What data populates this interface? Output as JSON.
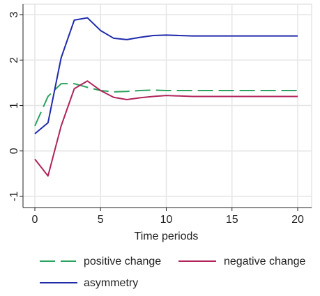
{
  "chart_data": {
    "type": "line",
    "title": "",
    "xlabel": "Time periods",
    "ylabel": "",
    "xlim": [
      0,
      20
    ],
    "ylim": [
      -1,
      3
    ],
    "xticks": [
      "0",
      "5",
      "10",
      "15",
      "20"
    ],
    "yticks": [
      "-1",
      "0",
      "1",
      "2",
      "3"
    ],
    "grid": true,
    "legend_position": "bottom",
    "series": [
      {
        "name": "positive change",
        "color": "#2ca25f",
        "dash": "dashed",
        "x": [
          0,
          1,
          2,
          3,
          4,
          5,
          6,
          7,
          8,
          9,
          10,
          11,
          12,
          13,
          14,
          15,
          16,
          17,
          18,
          19,
          20
        ],
        "values": [
          0.55,
          1.2,
          1.48,
          1.48,
          1.4,
          1.33,
          1.3,
          1.31,
          1.33,
          1.34,
          1.33,
          1.33,
          1.33,
          1.33,
          1.33,
          1.33,
          1.33,
          1.33,
          1.33,
          1.33,
          1.33
        ]
      },
      {
        "name": "negative change",
        "color": "#b0245a",
        "dash": "solid",
        "x": [
          0,
          1,
          2,
          3,
          4,
          5,
          6,
          7,
          8,
          9,
          10,
          11,
          12,
          13,
          14,
          15,
          16,
          17,
          18,
          19,
          20
        ],
        "values": [
          -0.18,
          -0.55,
          0.55,
          1.37,
          1.54,
          1.33,
          1.18,
          1.13,
          1.17,
          1.2,
          1.22,
          1.21,
          1.2,
          1.2,
          1.2,
          1.2,
          1.2,
          1.2,
          1.2,
          1.2,
          1.2
        ]
      },
      {
        "name": "asymmetry",
        "color": "#1f2bab",
        "dash": "solid",
        "x": [
          0,
          1,
          2,
          3,
          4,
          5,
          6,
          7,
          8,
          9,
          10,
          11,
          12,
          13,
          14,
          15,
          16,
          17,
          18,
          19,
          20
        ],
        "values": [
          0.38,
          0.62,
          2.05,
          2.88,
          2.93,
          2.65,
          2.48,
          2.45,
          2.5,
          2.54,
          2.55,
          2.54,
          2.53,
          2.53,
          2.53,
          2.53,
          2.53,
          2.53,
          2.53,
          2.53,
          2.53
        ]
      }
    ]
  }
}
